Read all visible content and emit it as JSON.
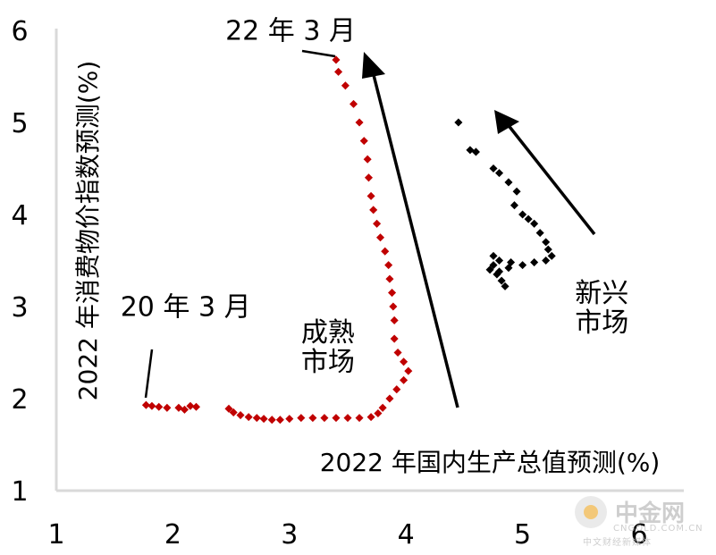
{
  "chart_data": {
    "type": "scatter",
    "title": "",
    "xlabel": "2022 年国内生产总值预测(%)",
    "ylabel": "2022 年消费物价指数预测(%)",
    "xlim": [
      1,
      6
    ],
    "ylim": [
      1,
      6
    ],
    "x_ticks": [
      "1",
      "2",
      "3",
      "4",
      "5",
      "6"
    ],
    "y_ticks": [
      "1",
      "2",
      "3",
      "4",
      "5",
      "6"
    ],
    "grid": false,
    "colors": {
      "mature": "#c00000",
      "emerging": "#000000",
      "axis": "#d9d9d9"
    },
    "series": [
      {
        "name": "成熟市场",
        "points": [
          [
            1.77,
            1.93
          ],
          [
            1.82,
            1.92
          ],
          [
            1.88,
            1.91
          ],
          [
            1.95,
            1.9
          ],
          [
            2.05,
            1.9
          ],
          [
            2.1,
            1.88
          ],
          [
            2.15,
            1.92
          ],
          [
            2.2,
            1.91
          ],
          [
            2.48,
            1.89
          ],
          [
            2.52,
            1.85
          ],
          [
            2.58,
            1.82
          ],
          [
            2.65,
            1.8
          ],
          [
            2.72,
            1.79
          ],
          [
            2.78,
            1.78
          ],
          [
            2.85,
            1.77
          ],
          [
            2.92,
            1.77
          ],
          [
            3.0,
            1.78
          ],
          [
            3.1,
            1.79
          ],
          [
            3.2,
            1.79
          ],
          [
            3.3,
            1.79
          ],
          [
            3.4,
            1.79
          ],
          [
            3.5,
            1.79
          ],
          [
            3.6,
            1.79
          ],
          [
            3.7,
            1.8
          ],
          [
            3.76,
            1.84
          ],
          [
            3.8,
            1.9
          ],
          [
            3.86,
            2.0
          ],
          [
            3.92,
            2.1
          ],
          [
            3.98,
            2.2
          ],
          [
            4.02,
            2.3
          ],
          [
            3.98,
            2.4
          ],
          [
            3.93,
            2.5
          ],
          [
            3.9,
            2.65
          ],
          [
            3.9,
            2.85
          ],
          [
            3.89,
            3.0
          ],
          [
            3.88,
            3.15
          ],
          [
            3.86,
            3.3
          ],
          [
            3.85,
            3.45
          ],
          [
            3.82,
            3.6
          ],
          [
            3.78,
            3.75
          ],
          [
            3.75,
            3.9
          ],
          [
            3.72,
            4.05
          ],
          [
            3.7,
            4.2
          ],
          [
            3.68,
            4.4
          ],
          [
            3.67,
            4.6
          ],
          [
            3.64,
            4.8
          ],
          [
            3.6,
            5.0
          ],
          [
            3.55,
            5.2
          ],
          [
            3.48,
            5.4
          ],
          [
            3.42,
            5.55
          ],
          [
            3.4,
            5.68
          ]
        ]
      },
      {
        "name": "新兴市场",
        "points": [
          [
            4.45,
            5.0
          ],
          [
            4.55,
            4.7
          ],
          [
            4.6,
            4.68
          ],
          [
            4.75,
            4.5
          ],
          [
            4.8,
            4.45
          ],
          [
            4.88,
            4.35
          ],
          [
            4.95,
            4.25
          ],
          [
            4.93,
            4.1
          ],
          [
            5.0,
            4.0
          ],
          [
            5.05,
            3.95
          ],
          [
            5.1,
            3.9
          ],
          [
            5.15,
            3.8
          ],
          [
            5.2,
            3.7
          ],
          [
            5.22,
            3.62
          ],
          [
            5.25,
            3.55
          ],
          [
            5.2,
            3.5
          ],
          [
            5.1,
            3.48
          ],
          [
            5.0,
            3.45
          ],
          [
            4.9,
            3.48
          ],
          [
            4.8,
            3.5
          ],
          [
            4.75,
            3.45
          ],
          [
            4.72,
            3.4
          ],
          [
            4.78,
            3.35
          ],
          [
            4.82,
            3.28
          ],
          [
            4.85,
            3.22
          ],
          [
            4.75,
            3.55
          ],
          [
            4.8,
            3.38
          ],
          [
            4.88,
            3.42
          ]
        ]
      }
    ],
    "annotations": [
      {
        "text": "22 年 3 月",
        "x": 2.45,
        "y": 5.9
      },
      {
        "text": "20 年 3 月",
        "x": 1.55,
        "y": 2.9
      },
      {
        "text": "成熟",
        "x": 3.1,
        "y": 2.62
      },
      {
        "text": "市场",
        "x": 3.1,
        "y": 2.3
      },
      {
        "text": "新兴",
        "x": 5.45,
        "y": 3.05
      },
      {
        "text": "市场",
        "x": 5.45,
        "y": 2.73
      }
    ]
  },
  "watermark": {
    "brand": "中金网",
    "site": "CNGOLD.COM.CN",
    "slogan": "中文财经新媒体"
  }
}
